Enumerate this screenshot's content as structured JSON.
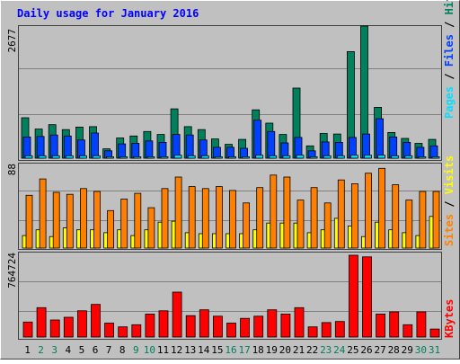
{
  "title": "Daily usage for January 2016",
  "colors": {
    "background": "#c0c0c0",
    "title_text": "#0000ff",
    "grid": "#808080",
    "hits": "#00805c",
    "files": "#0040ff",
    "pages": "#00e0ff",
    "visits": "#ffff00",
    "sites": "#ff8000",
    "kbytes": "#ff0000",
    "weekend_label": "#00805c",
    "weekday_label": "#000000"
  },
  "chart_data": [
    {
      "type": "bar",
      "panel": "hits-files-pages",
      "scale_label": "2677",
      "ylim": [
        0,
        2677
      ],
      "side_label": {
        "pages": "Pages",
        "sep1": " / ",
        "files": "Files",
        "sep2": " / ",
        "hits": "Hits"
      },
      "categories": [
        "1",
        "2",
        "3",
        "4",
        "5",
        "6",
        "7",
        "8",
        "9",
        "10",
        "11",
        "12",
        "13",
        "14",
        "15",
        "16",
        "17",
        "18",
        "19",
        "20",
        "21",
        "22",
        "23",
        "24",
        "25",
        "26",
        "27",
        "28",
        "29",
        "30",
        "31"
      ],
      "series": [
        {
          "name": "Hits",
          "values": [
            820,
            590,
            680,
            580,
            630,
            640,
            190,
            410,
            450,
            540,
            480,
            1000,
            640,
            580,
            390,
            280,
            380,
            980,
            710,
            480,
            1420,
            250,
            500,
            490,
            2160,
            2677,
            1030,
            520,
            400,
            300,
            380
          ]
        },
        {
          "name": "Files",
          "values": [
            430,
            440,
            470,
            450,
            370,
            510,
            150,
            290,
            300,
            350,
            320,
            480,
            470,
            370,
            220,
            220,
            200,
            770,
            540,
            310,
            420,
            150,
            330,
            320,
            420,
            490,
            800,
            430,
            320,
            220,
            250
          ]
        },
        {
          "name": "Pages",
          "values": [
            50,
            50,
            50,
            50,
            50,
            50,
            30,
            30,
            30,
            30,
            30,
            60,
            50,
            50,
            30,
            30,
            30,
            60,
            50,
            50,
            60,
            30,
            50,
            50,
            60,
            60,
            60,
            50,
            50,
            30,
            30
          ]
        }
      ]
    },
    {
      "type": "bar",
      "panel": "sites-visits",
      "scale_label": "88",
      "ylim": [
        0,
        88
      ],
      "side_label": {
        "sites": "Sites",
        "sep1": " / ",
        "visits": "Visits"
      },
      "categories": [
        "1",
        "2",
        "3",
        "4",
        "5",
        "6",
        "7",
        "8",
        "9",
        "10",
        "11",
        "12",
        "13",
        "14",
        "15",
        "16",
        "17",
        "18",
        "19",
        "20",
        "21",
        "22",
        "23",
        "24",
        "25",
        "26",
        "27",
        "28",
        "29",
        "30",
        "31"
      ],
      "series": [
        {
          "name": "Sites",
          "values": [
            55,
            72,
            58,
            56,
            62,
            59,
            39,
            51,
            57,
            42,
            62,
            74,
            64,
            62,
            64,
            60,
            47,
            63,
            76,
            74,
            50,
            63,
            47,
            71,
            67,
            78,
            83,
            66,
            50,
            59,
            59
          ]
        },
        {
          "name": "Visits",
          "values": [
            13,
            19,
            12,
            21,
            19,
            19,
            16,
            19,
            13,
            19,
            27,
            28,
            16,
            15,
            15,
            15,
            15,
            19,
            26,
            26,
            26,
            16,
            19,
            31,
            23,
            12,
            27,
            19,
            16,
            13,
            33
          ]
        }
      ]
    },
    {
      "type": "bar",
      "panel": "kbytes",
      "scale_label": "764724",
      "ylim": [
        0,
        764724
      ],
      "side_label": {
        "kbytes": "KBytes"
      },
      "categories": [
        "1",
        "2",
        "3",
        "4",
        "5",
        "6",
        "7",
        "8",
        "9",
        "10",
        "11",
        "12",
        "13",
        "14",
        "15",
        "16",
        "17",
        "18",
        "19",
        "20",
        "21",
        "22",
        "23",
        "24",
        "25",
        "26",
        "27",
        "28",
        "29",
        "30",
        "31"
      ],
      "series": [
        {
          "name": "KBytes",
          "values": [
            140000,
            275000,
            160000,
            185000,
            245000,
            305000,
            130000,
            95000,
            115000,
            215000,
            245000,
            420000,
            200000,
            255000,
            195000,
            130000,
            175000,
            195000,
            255000,
            215000,
            275000,
            95000,
            135000,
            145000,
            764724,
            750000,
            215000,
            235000,
            115000,
            235000,
            75000
          ]
        }
      ]
    }
  ],
  "x_axis": {
    "labels": [
      "1",
      "2",
      "3",
      "4",
      "5",
      "6",
      "7",
      "8",
      "9",
      "10",
      "11",
      "12",
      "13",
      "14",
      "15",
      "16",
      "17",
      "18",
      "19",
      "20",
      "21",
      "22",
      "23",
      "24",
      "25",
      "26",
      "27",
      "28",
      "29",
      "30",
      "31"
    ],
    "weekend_days": [
      "2",
      "3",
      "9",
      "10",
      "16",
      "17",
      "23",
      "24",
      "30",
      "31"
    ]
  }
}
